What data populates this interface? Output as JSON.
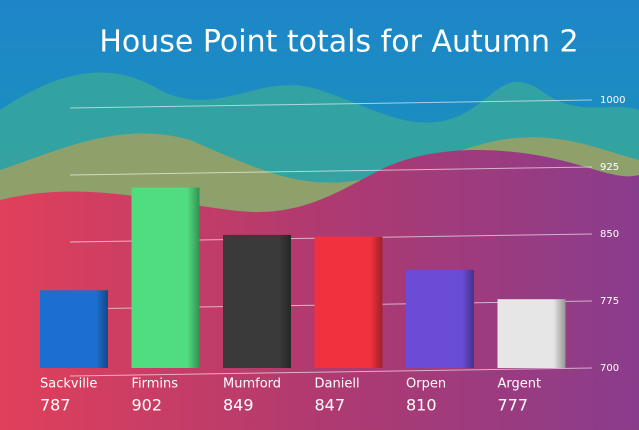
{
  "chart_data": {
    "type": "bar",
    "title": "House Point totals for Autumn 2",
    "categories": [
      "Sackville",
      "Firmins",
      "Mumford",
      "Daniell",
      "Orpen",
      "Argent"
    ],
    "values": [
      787,
      902,
      849,
      847,
      810,
      777
    ],
    "colors": [
      "#1b6fd0",
      "#4fdd80",
      "#3a3a3a",
      "#f2313f",
      "#6a4cd6",
      "#e6e6e6"
    ],
    "ylim": [
      700,
      1000
    ],
    "yticks": [
      700,
      775,
      850,
      925,
      1000
    ],
    "grid": true
  }
}
